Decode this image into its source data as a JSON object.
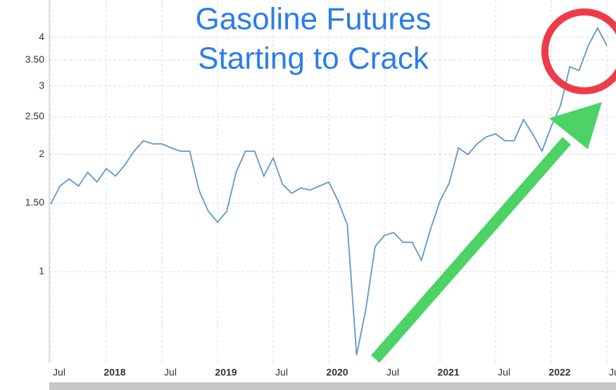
{
  "chart_data": {
    "type": "line",
    "title_lines": [
      "Gasoline Futures",
      "Starting to Crack"
    ],
    "x": [
      "2017-07",
      "2017-08",
      "2017-09",
      "2017-10",
      "2017-11",
      "2017-12",
      "2018-01",
      "2018-02",
      "2018-03",
      "2018-04",
      "2018-05",
      "2018-06",
      "2018-07",
      "2018-08",
      "2018-09",
      "2018-10",
      "2018-11",
      "2018-12",
      "2019-01",
      "2019-02",
      "2019-03",
      "2019-04",
      "2019-05",
      "2019-06",
      "2019-07",
      "2019-08",
      "2019-09",
      "2019-10",
      "2019-11",
      "2019-12",
      "2020-01",
      "2020-02",
      "2020-03",
      "2020-04",
      "2020-05",
      "2020-06",
      "2020-07",
      "2020-08",
      "2020-09",
      "2020-10",
      "2020-11",
      "2020-12",
      "2021-01",
      "2021-02",
      "2021-03",
      "2021-04",
      "2021-05",
      "2021-06",
      "2021-07",
      "2021-08",
      "2021-09",
      "2021-10",
      "2021-11",
      "2021-12",
      "2022-01",
      "2022-02",
      "2022-03",
      "2022-04",
      "2022-05",
      "2022-06",
      "2022-07"
    ],
    "series": [
      {
        "color": "#5b98cc",
        "values": [
          1.49,
          1.66,
          1.73,
          1.66,
          1.8,
          1.7,
          1.84,
          1.76,
          1.88,
          2.04,
          2.17,
          2.13,
          2.13,
          2.08,
          2.04,
          2.04,
          1.62,
          1.43,
          1.34,
          1.43,
          1.8,
          2.04,
          2.04,
          1.76,
          1.96,
          1.68,
          1.59,
          1.64,
          1.62,
          1.66,
          1.7,
          1.52,
          1.32,
          0.61,
          0.8,
          1.16,
          1.24,
          1.26,
          1.19,
          1.19,
          1.07,
          1.29,
          1.52,
          1.69,
          2.08,
          2.0,
          2.13,
          2.22,
          2.26,
          2.17,
          2.17,
          2.46,
          2.26,
          2.04,
          2.36,
          2.67,
          3.36,
          3.29,
          3.81,
          4.23,
          3.81
        ]
      }
    ],
    "yscale": "log",
    "ylim": [
      0.584,
      4.99
    ],
    "yticks": [
      1,
      {
        "value": 1.5,
        "label": "1.50"
      },
      2,
      {
        "value": 2.5,
        "label": "2.50"
      },
      3,
      {
        "value": 3.5,
        "label": "3.50"
      },
      4
    ],
    "xticks": [
      {
        "value": "2017-07",
        "label": "Jul"
      },
      {
        "value": "2018-01",
        "label": "2018"
      },
      {
        "value": "2018-07",
        "label": "Jul"
      },
      {
        "value": "2019-01",
        "label": "2019"
      },
      {
        "value": "2019-07",
        "label": "Jul"
      },
      {
        "value": "2020-01",
        "label": "2020"
      },
      {
        "value": "2020-07",
        "label": "Jul"
      },
      {
        "value": "2021-01",
        "label": "2021"
      },
      {
        "value": "2021-07",
        "label": "Jul"
      },
      {
        "value": "2022-01",
        "label": "2022"
      },
      {
        "value": "2022-07",
        "label": "Jul"
      }
    ],
    "grid": true
  }
}
